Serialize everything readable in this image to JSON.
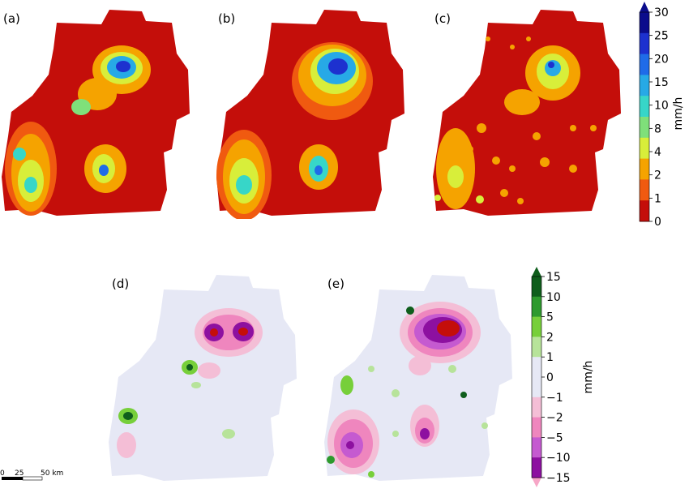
{
  "panels": [
    {
      "label": "(a)"
    },
    {
      "label": "(b)"
    },
    {
      "label": "(c)"
    },
    {
      "label": "(d)"
    },
    {
      "label": "(e)"
    }
  ],
  "colorbar_precip": {
    "unit": "mm/h",
    "ticks": [
      "30",
      "25",
      "20",
      "15",
      "10",
      "8",
      "4",
      "2",
      "1",
      "0"
    ],
    "colors": [
      "#0b0c8c",
      "#1d31cf",
      "#1f6be8",
      "#27a9e6",
      "#37d6c8",
      "#7fe07a",
      "#d8ee3a",
      "#f5a300",
      "#f05a10",
      "#c40e0a"
    ]
  },
  "colorbar_diff": {
    "unit": "mm/h",
    "ticks": [
      "15",
      "10",
      "5",
      "2",
      "1",
      "0",
      "−1",
      "−2",
      "−5",
      "−10",
      "−15"
    ],
    "colors": [
      "#0f5e1c",
      "#2e9a2e",
      "#77cf3a",
      "#b7e39a",
      "#e6e8f5",
      "#e6e8f5",
      "#f4bed6",
      "#ef86be",
      "#c55ad0",
      "#8d10a0"
    ]
  },
  "scalebar": {
    "labels": [
      "0",
      "25",
      "50 km"
    ]
  }
}
